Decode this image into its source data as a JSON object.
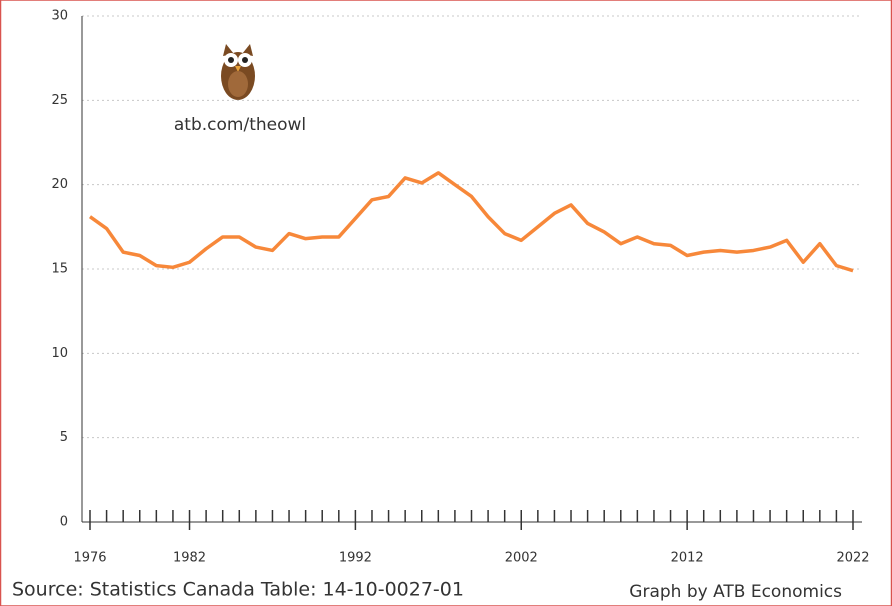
{
  "chart_data": {
    "type": "line",
    "annotations": [
      "atb.com/theowl",
      "Source: Statistics Canada Table: 14-10-0027-01",
      "Graph by ATB Economics"
    ],
    "x": [
      1976,
      1977,
      1978,
      1979,
      1980,
      1981,
      1982,
      1983,
      1984,
      1985,
      1986,
      1987,
      1988,
      1989,
      1990,
      1991,
      1992,
      1993,
      1994,
      1995,
      1996,
      1997,
      1998,
      1999,
      2000,
      2001,
      2002,
      2003,
      2004,
      2005,
      2006,
      2007,
      2008,
      2009,
      2010,
      2011,
      2012,
      2013,
      2014,
      2015,
      2016,
      2017,
      2018,
      2019,
      2020,
      2021,
      2022
    ],
    "series": [
      {
        "color": "#f7883a",
        "values": [
          18.1,
          17.4,
          16.0,
          15.8,
          15.2,
          15.1,
          15.4,
          16.2,
          16.9,
          16.9,
          16.3,
          16.1,
          17.1,
          16.8,
          16.9,
          16.9,
          18.0,
          19.1,
          19.3,
          20.4,
          20.1,
          20.7,
          20.0,
          19.3,
          18.1,
          17.1,
          16.7,
          17.5,
          18.3,
          18.8,
          17.7,
          17.2,
          16.5,
          16.9,
          16.5,
          16.4,
          15.8,
          16.0,
          16.1,
          16.0,
          16.1,
          16.3,
          16.7,
          15.4,
          16.5,
          15.2,
          14.9
        ]
      }
    ],
    "xlim": [
      1976,
      2022
    ],
    "xticks": [
      1976,
      1982,
      1992,
      2002,
      2012,
      2022
    ],
    "ylim": [
      0,
      30
    ],
    "yticks": [
      0,
      5,
      10,
      15,
      20,
      25,
      30
    ],
    "grid": true
  }
}
